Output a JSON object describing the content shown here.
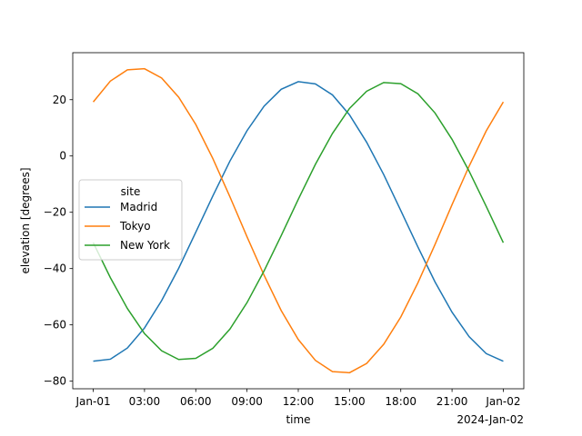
{
  "chart_data": {
    "type": "line",
    "x_label": "time",
    "y_label": "elevation [degrees]",
    "x_offset_label": "2024-Jan-02",
    "legend_title": "site",
    "legend_position": "center left",
    "x": [
      0,
      1,
      2,
      3,
      4,
      5,
      6,
      7,
      8,
      9,
      10,
      11,
      12,
      13,
      14,
      15,
      16,
      17,
      18,
      19,
      20,
      21,
      22,
      23,
      24
    ],
    "series": [
      {
        "name": "Madrid",
        "color": "#1f77b4",
        "values": [
          -72.9,
          -72.2,
          -68.2,
          -61.1,
          -51.4,
          -39.9,
          -27.1,
          -14.2,
          -1.8,
          9.0,
          17.7,
          23.7,
          26.4,
          25.6,
          21.7,
          14.6,
          4.9,
          -6.6,
          -19.4,
          -32.3,
          -44.7,
          -55.5,
          -64.2,
          -70.2,
          -72.9
        ]
      },
      {
        "name": "Tokyo",
        "color": "#ff7f0e",
        "values": [
          19.2,
          26.6,
          30.6,
          31.0,
          27.7,
          20.9,
          11.2,
          -0.9,
          -14.5,
          -28.7,
          -42.4,
          -54.9,
          -65.2,
          -72.6,
          -76.6,
          -77.0,
          -73.7,
          -66.9,
          -57.2,
          -45.1,
          -31.5,
          -17.3,
          -3.6,
          8.9,
          19.2
        ]
      },
      {
        "name": "New York",
        "color": "#2ca02c",
        "values": [
          -30.8,
          -43.2,
          -54.2,
          -63.1,
          -69.2,
          -72.3,
          -71.9,
          -68.3,
          -61.5,
          -52.1,
          -40.8,
          -28.3,
          -15.4,
          -3.0,
          8.0,
          16.9,
          23.0,
          26.1,
          25.7,
          22.1,
          15.3,
          5.9,
          -5.4,
          -17.9,
          -30.8
        ]
      }
    ],
    "xlim": [
      -1.2,
      25.2
    ],
    "xticks": [
      {
        "value": 0,
        "label": "Jan-01"
      },
      {
        "value": 3,
        "label": "03:00"
      },
      {
        "value": 6,
        "label": "06:00"
      },
      {
        "value": 9,
        "label": "09:00"
      },
      {
        "value": 12,
        "label": "12:00"
      },
      {
        "value": 15,
        "label": "15:00"
      },
      {
        "value": 18,
        "label": "18:00"
      },
      {
        "value": 21,
        "label": "21:00"
      },
      {
        "value": 24,
        "label": "Jan-02"
      }
    ],
    "ylim": [
      -82.7,
      36.7
    ],
    "yticks": [
      {
        "value": -80,
        "label": "−80"
      },
      {
        "value": -60,
        "label": "−60"
      },
      {
        "value": -40,
        "label": "−40"
      },
      {
        "value": -20,
        "label": "−20"
      },
      0,
      20
    ],
    "grid": false
  }
}
